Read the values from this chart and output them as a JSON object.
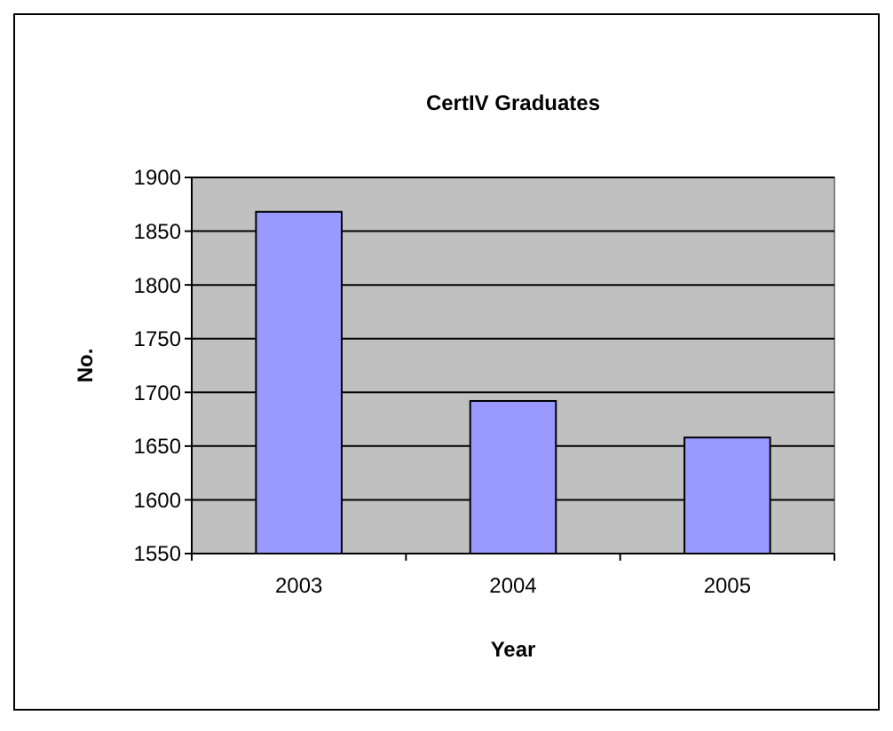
{
  "chart_data": {
    "type": "bar",
    "title": "CertIV Graduates",
    "xlabel": "Year",
    "ylabel": "No.",
    "categories": [
      "2003",
      "2004",
      "2005"
    ],
    "values": [
      1868,
      1692,
      1658
    ],
    "color": "#9999ff",
    "ylim": [
      1550,
      1900
    ],
    "yticks": [
      1550,
      1600,
      1650,
      1700,
      1750,
      1800,
      1850,
      1900
    ],
    "grid": "y"
  }
}
